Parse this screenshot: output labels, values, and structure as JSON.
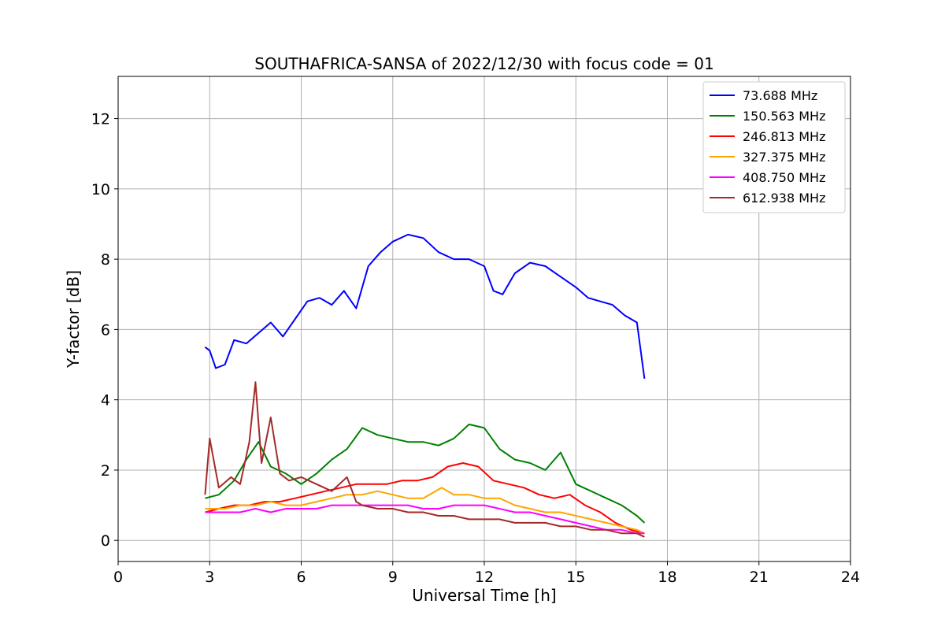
{
  "chart_data": {
    "type": "line",
    "title": "SOUTHAFRICA-SANSA of 2022/12/30 with focus code = 01",
    "xlabel": "Universal Time [h]",
    "ylabel": "Y-factor [dB]",
    "xlim": [
      0,
      24
    ],
    "ylim": [
      -0.6,
      13.2
    ],
    "xticks": [
      0,
      3,
      6,
      9,
      12,
      15,
      18,
      21,
      24
    ],
    "yticks": [
      0,
      2,
      4,
      6,
      8,
      10,
      12
    ],
    "xtick_labels": [
      "0",
      "3",
      "6",
      "9",
      "12",
      "15",
      "18",
      "21",
      "24"
    ],
    "ytick_labels": [
      "0",
      "2",
      "4",
      "6",
      "8",
      "10",
      "12"
    ],
    "grid": true,
    "legend_position": "top-right",
    "series": [
      {
        "name": " 73.688 MHz",
        "color": "#0000ff",
        "x": [
          2.85,
          3.0,
          3.2,
          3.5,
          3.8,
          4.2,
          4.6,
          5.0,
          5.4,
          5.8,
          6.2,
          6.6,
          7.0,
          7.4,
          7.8,
          8.2,
          8.6,
          9.0,
          9.5,
          10.0,
          10.5,
          11.0,
          11.5,
          12.0,
          12.3,
          12.6,
          13.0,
          13.5,
          14.0,
          14.5,
          15.0,
          15.4,
          15.8,
          16.2,
          16.6,
          17.0,
          17.25
        ],
        "y": [
          5.5,
          5.4,
          4.9,
          5.0,
          5.7,
          5.6,
          5.9,
          6.2,
          5.8,
          6.3,
          6.8,
          6.9,
          6.7,
          7.1,
          6.6,
          7.8,
          8.2,
          8.5,
          8.7,
          8.6,
          8.2,
          8.0,
          8.0,
          7.8,
          7.1,
          7.0,
          7.6,
          7.9,
          7.8,
          7.5,
          7.2,
          6.9,
          6.8,
          6.7,
          6.4,
          6.2,
          4.6
        ]
      },
      {
        "name": "150.563 MHz",
        "color": "#008000",
        "x": [
          2.85,
          3.3,
          3.8,
          4.2,
          4.6,
          5.0,
          5.5,
          6.0,
          6.5,
          7.0,
          7.5,
          8.0,
          8.5,
          9.0,
          9.5,
          10.0,
          10.5,
          11.0,
          11.5,
          12.0,
          12.5,
          13.0,
          13.5,
          14.0,
          14.5,
          15.0,
          15.5,
          16.0,
          16.5,
          17.0,
          17.25
        ],
        "y": [
          1.2,
          1.3,
          1.7,
          2.3,
          2.8,
          2.1,
          1.9,
          1.6,
          1.9,
          2.3,
          2.6,
          3.2,
          3.0,
          2.9,
          2.8,
          2.8,
          2.7,
          2.9,
          3.3,
          3.2,
          2.6,
          2.3,
          2.2,
          2.0,
          2.5,
          1.6,
          1.4,
          1.2,
          1.0,
          0.7,
          0.5
        ]
      },
      {
        "name": "246.813 MHz",
        "color": "#ff0000",
        "x": [
          2.85,
          3.3,
          3.8,
          4.3,
          4.8,
          5.3,
          5.8,
          6.3,
          6.8,
          7.3,
          7.8,
          8.3,
          8.8,
          9.3,
          9.8,
          10.3,
          10.8,
          11.3,
          11.8,
          12.3,
          12.8,
          13.3,
          13.8,
          14.3,
          14.8,
          15.3,
          15.8,
          16.3,
          16.8,
          17.25
        ],
        "y": [
          0.8,
          0.9,
          1.0,
          1.0,
          1.1,
          1.1,
          1.2,
          1.3,
          1.4,
          1.5,
          1.6,
          1.6,
          1.6,
          1.7,
          1.7,
          1.8,
          2.1,
          2.2,
          2.1,
          1.7,
          1.6,
          1.5,
          1.3,
          1.2,
          1.3,
          1.0,
          0.8,
          0.5,
          0.3,
          0.2
        ]
      },
      {
        "name": "327.375 MHz",
        "color": "#ffa500",
        "x": [
          2.85,
          3.5,
          4.0,
          4.5,
          5.0,
          5.5,
          6.0,
          6.5,
          7.0,
          7.5,
          8.0,
          8.5,
          9.0,
          9.5,
          10.0,
          10.6,
          11.0,
          11.5,
          12.0,
          12.5,
          13.0,
          13.5,
          14.0,
          14.5,
          15.0,
          15.5,
          16.0,
          16.5,
          17.0,
          17.25
        ],
        "y": [
          0.9,
          0.9,
          1.0,
          1.0,
          1.1,
          1.0,
          1.0,
          1.1,
          1.2,
          1.3,
          1.3,
          1.4,
          1.3,
          1.2,
          1.2,
          1.5,
          1.3,
          1.3,
          1.2,
          1.2,
          1.0,
          0.9,
          0.8,
          0.8,
          0.7,
          0.6,
          0.5,
          0.4,
          0.3,
          0.2
        ]
      },
      {
        "name": "408.750 MHz",
        "color": "#ff00ff",
        "x": [
          2.85,
          3.5,
          4.0,
          4.5,
          5.0,
          5.5,
          6.0,
          6.5,
          7.0,
          7.5,
          8.0,
          8.5,
          9.0,
          9.5,
          10.0,
          10.5,
          11.0,
          11.5,
          12.0,
          12.5,
          13.0,
          13.5,
          14.0,
          14.5,
          15.0,
          15.5,
          16.0,
          16.5,
          17.0,
          17.25
        ],
        "y": [
          0.8,
          0.8,
          0.8,
          0.9,
          0.8,
          0.9,
          0.9,
          0.9,
          1.0,
          1.0,
          1.0,
          1.0,
          1.0,
          1.0,
          0.9,
          0.9,
          1.0,
          1.0,
          1.0,
          0.9,
          0.8,
          0.8,
          0.7,
          0.6,
          0.5,
          0.4,
          0.3,
          0.3,
          0.2,
          0.2
        ]
      },
      {
        "name": "612.938 MHz",
        "color": "#a52a2a",
        "x": [
          2.85,
          3.0,
          3.3,
          3.7,
          4.0,
          4.3,
          4.5,
          4.7,
          5.0,
          5.3,
          5.6,
          6.0,
          6.5,
          7.0,
          7.5,
          7.8,
          8.0,
          8.5,
          9.0,
          9.5,
          10.0,
          10.5,
          11.0,
          11.5,
          12.0,
          12.5,
          13.0,
          13.5,
          14.0,
          14.5,
          15.0,
          15.5,
          16.0,
          16.5,
          17.0,
          17.25
        ],
        "y": [
          1.3,
          2.9,
          1.5,
          1.8,
          1.6,
          2.8,
          4.5,
          2.2,
          3.5,
          1.9,
          1.7,
          1.8,
          1.6,
          1.4,
          1.8,
          1.1,
          1.0,
          0.9,
          0.9,
          0.8,
          0.8,
          0.7,
          0.7,
          0.6,
          0.6,
          0.6,
          0.5,
          0.5,
          0.5,
          0.4,
          0.4,
          0.3,
          0.3,
          0.2,
          0.2,
          0.1
        ]
      }
    ]
  }
}
